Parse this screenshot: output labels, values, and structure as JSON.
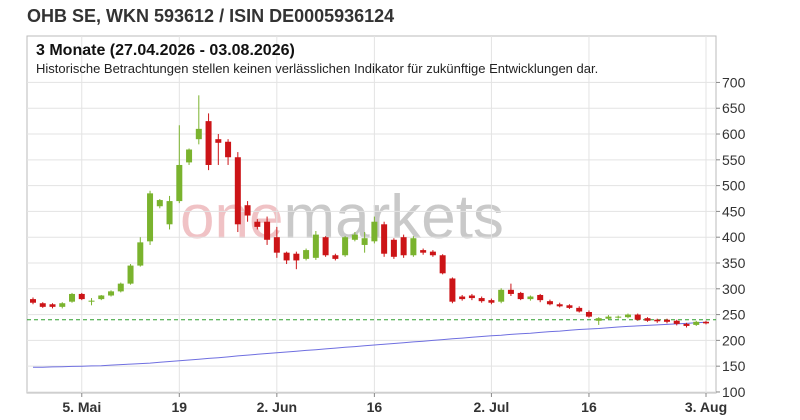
{
  "chart_data": {
    "type": "candlestick",
    "title": "OHB SE, WKN 593612 / ISIN DE0005936124",
    "subtitle": "3 Monate (27.04.2026 - 03.08.2026)",
    "note": "Historische Betrachtungen stellen keinen verlässlichen Indikator für zukünftige Entwicklungen dar.",
    "watermark": [
      "one",
      "markets"
    ],
    "categories": [
      "2026-04-27",
      "2026-04-28",
      "2026-04-29",
      "2026-04-30",
      "2026-05-04",
      "2026-05-05",
      "2026-05-06",
      "2026-05-07",
      "2026-05-08",
      "2026-05-11",
      "2026-05-12",
      "2026-05-13",
      "2026-05-14",
      "2026-05-15",
      "2026-05-18",
      "2026-05-19",
      "2026-05-20",
      "2026-05-21",
      "2026-05-22",
      "2026-05-25",
      "2026-05-26",
      "2026-05-27",
      "2026-05-28",
      "2026-05-29",
      "2026-06-01",
      "2026-06-02",
      "2026-06-03",
      "2026-06-04",
      "2026-06-05",
      "2026-06-08",
      "2026-06-09",
      "2026-06-10",
      "2026-06-11",
      "2026-06-12",
      "2026-06-15",
      "2026-06-16",
      "2026-06-17",
      "2026-06-18",
      "2026-06-19",
      "2026-06-22",
      "2026-06-23",
      "2026-06-24",
      "2026-06-25",
      "2026-06-26",
      "2026-06-29",
      "2026-06-30",
      "2026-07-01",
      "2026-07-02",
      "2026-07-03",
      "2026-07-06",
      "2026-07-07",
      "2026-07-08",
      "2026-07-09",
      "2026-07-10",
      "2026-07-13",
      "2026-07-14",
      "2026-07-15",
      "2026-07-16",
      "2026-07-17",
      "2026-07-20",
      "2026-07-21",
      "2026-07-22",
      "2026-07-23",
      "2026-07-24",
      "2026-07-27",
      "2026-07-28",
      "2026-07-29",
      "2026-07-30",
      "2026-07-31",
      "2026-08-03"
    ],
    "open": [
      280,
      272,
      270,
      265,
      275,
      290,
      275,
      280,
      287,
      295,
      310,
      345,
      392,
      460,
      425,
      470,
      545,
      590,
      625,
      590,
      585,
      555,
      462,
      430,
      430,
      400,
      370,
      368,
      358,
      360,
      400,
      365,
      365,
      395,
      385,
      392,
      425,
      395,
      400,
      365,
      375,
      372,
      365,
      320,
      285,
      287,
      282,
      278,
      275,
      298,
      292,
      280,
      288,
      276,
      270,
      268,
      263,
      255,
      238,
      242,
      244,
      245,
      250,
      243,
      240,
      240,
      238,
      232,
      230,
      236
    ],
    "high": [
      283,
      274,
      272,
      274,
      292,
      292,
      282,
      288,
      297,
      312,
      348,
      400,
      490,
      474,
      480,
      617,
      572,
      675,
      640,
      600,
      590,
      565,
      470,
      435,
      440,
      420,
      372,
      372,
      378,
      412,
      402,
      368,
      402,
      410,
      410,
      440,
      430,
      398,
      405,
      402,
      378,
      375,
      367,
      322,
      288,
      290,
      285,
      281,
      301,
      310,
      294,
      287,
      290,
      279,
      273,
      270,
      266,
      258,
      245,
      249,
      248,
      252,
      252,
      245,
      242,
      242,
      240,
      234,
      238,
      238
    ],
    "low": [
      270,
      263,
      262,
      262,
      273,
      278,
      268,
      278,
      285,
      293,
      308,
      343,
      385,
      456,
      415,
      466,
      540,
      580,
      530,
      540,
      540,
      410,
      430,
      415,
      385,
      360,
      348,
      338,
      355,
      356,
      362,
      355,
      362,
      392,
      370,
      388,
      362,
      358,
      360,
      362,
      366,
      362,
      328,
      272,
      277,
      278,
      273,
      270,
      272,
      286,
      278,
      277,
      274,
      268,
      264,
      261,
      254,
      244,
      230,
      240,
      242,
      243,
      238,
      236,
      234,
      233,
      229,
      225,
      228,
      231
    ],
    "close": [
      273,
      265,
      265,
      272,
      290,
      280,
      277,
      287,
      295,
      310,
      345,
      390,
      485,
      472,
      470,
      540,
      570,
      610,
      540,
      583,
      555,
      425,
      442,
      420,
      395,
      370,
      355,
      355,
      375,
      405,
      365,
      358,
      400,
      405,
      398,
      430,
      368,
      362,
      365,
      398,
      370,
      365,
      330,
      275,
      280,
      282,
      276,
      273,
      298,
      290,
      280,
      285,
      278,
      270,
      266,
      263,
      256,
      246,
      243,
      246,
      246,
      250,
      240,
      238,
      237,
      236,
      232,
      228,
      236,
      233
    ],
    "up_color": "#7ab32e",
    "down_color": "#cc1417",
    "moving_average": {
      "color": "#6f6fe0",
      "values": [
        148,
        148,
        148.5,
        149,
        149.5,
        150,
        150.5,
        151,
        152,
        153,
        154,
        155,
        156,
        157.5,
        159,
        160.5,
        162,
        163.5,
        165,
        166.5,
        168,
        170,
        171.5,
        173,
        174.5,
        176,
        177.5,
        179,
        180.5,
        182,
        183.5,
        185,
        186.5,
        188,
        189.5,
        191,
        192.5,
        194,
        195.5,
        197,
        198.5,
        200,
        201.5,
        203,
        204.5,
        206,
        207.5,
        209,
        210,
        211.5,
        213,
        214,
        215.5,
        217,
        218,
        219.5,
        221,
        222,
        223,
        224.5,
        226,
        227,
        228,
        229,
        230,
        231,
        232,
        233,
        234,
        235
      ]
    },
    "reference_line": {
      "value": 240,
      "color": "#2e9e2e"
    },
    "ylim": [
      98,
      790
    ],
    "yticks": [
      100,
      150,
      200,
      250,
      300,
      350,
      400,
      450,
      500,
      550,
      600,
      650,
      700
    ],
    "xticks": [
      {
        "value": "2026-05-05",
        "label": "5. Mai"
      },
      {
        "value": "2026-05-19",
        "label": "19"
      },
      {
        "value": "2026-06-02",
        "label": "2. Jun"
      },
      {
        "value": "2026-06-16",
        "label": "16"
      },
      {
        "value": "2026-07-02",
        "label": "2. Jul"
      },
      {
        "value": "2026-07-16",
        "label": "16"
      },
      {
        "value": "2026-08-03",
        "label": "3. Aug"
      }
    ],
    "grid": true
  }
}
